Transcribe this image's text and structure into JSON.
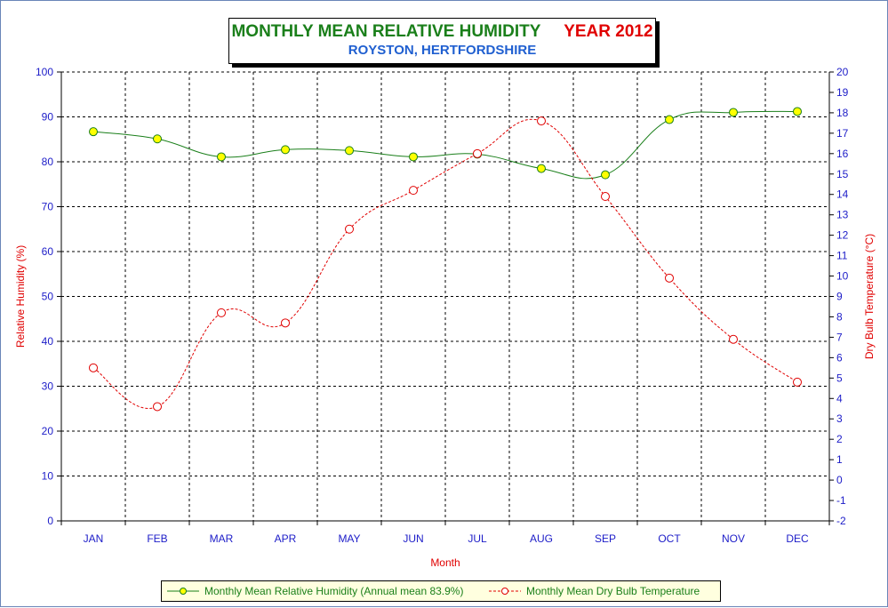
{
  "chart_data": {
    "type": "line",
    "title": "MONTHLY MEAN RELATIVE HUMIDITY",
    "title_year": "YEAR 2012",
    "subtitle": "ROYSTON, HERTFORDSHIRE",
    "xlabel": "Month",
    "ylabel": "Relative Humidity (%)",
    "y2label": "Dry Bulb Temperature (°C)",
    "categories": [
      "JAN",
      "FEB",
      "MAR",
      "APR",
      "MAY",
      "JUN",
      "JUL",
      "AUG",
      "SEP",
      "OCT",
      "NOV",
      "DEC"
    ],
    "ylim": [
      0,
      100
    ],
    "y_ticks": [
      "0",
      "10",
      "20",
      "30",
      "40",
      "50",
      "60",
      "70",
      "80",
      "90",
      "100"
    ],
    "y2lim": [
      -2,
      20
    ],
    "y2_ticks": [
      "-2",
      "-1",
      "0",
      "1",
      "2",
      "3",
      "4",
      "5",
      "6",
      "7",
      "8",
      "9",
      "10",
      "11",
      "12",
      "13",
      "14",
      "15",
      "16",
      "17",
      "18",
      "19",
      "20"
    ],
    "grid": true,
    "legend_position": "bottom",
    "series": [
      {
        "name": "Monthly Mean Relative Humidity (Annual mean 83.9%)",
        "axis": "left",
        "values": [
          86.7,
          85.1,
          81.1,
          82.7,
          82.5,
          81.1,
          81.7,
          78.5,
          77.1,
          89.4,
          91.0,
          91.2
        ],
        "line_color": "#1a7f1a",
        "marker_fill": "#ffff00",
        "line_style": "solid"
      },
      {
        "name": "Monthly Mean Dry Bulb Temperature",
        "axis": "right",
        "values": [
          5.5,
          3.6,
          8.2,
          7.7,
          12.3,
          14.2,
          16.0,
          17.6,
          13.9,
          9.9,
          6.9,
          4.8
        ],
        "line_color": "#e00000",
        "marker_fill": "#ffffff",
        "line_style": "dashed"
      }
    ]
  }
}
